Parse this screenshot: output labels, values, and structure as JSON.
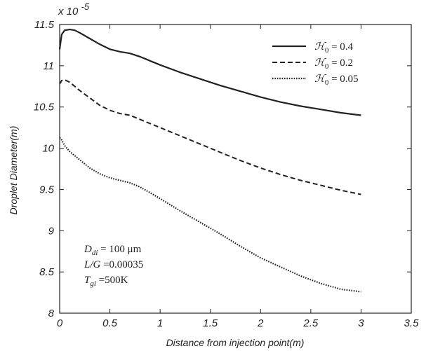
{
  "chart_data": {
    "type": "line",
    "xlabel": "Distance from injection point(m)",
    "ylabel": "Droplet Diameter(m)",
    "y_scale_label": "x 10",
    "y_scale_exponent": "-5",
    "xlim": [
      0,
      3.5
    ],
    "ylim": [
      8,
      11.5
    ],
    "x_ticks": [
      0,
      0.5,
      1,
      1.5,
      2,
      2.5,
      3,
      3.5
    ],
    "x_tick_labels": [
      "0",
      "0.5",
      "1",
      "1.5",
      "2",
      "2.5",
      "3",
      "3.5"
    ],
    "y_ticks": [
      8,
      8.5,
      9,
      9.5,
      10,
      10.5,
      11,
      11.5
    ],
    "y_tick_labels": [
      "8",
      "8.5",
      "9",
      "9.5",
      "10",
      "10.5",
      "11",
      "11.5"
    ],
    "grid": false,
    "legend_position": "top-right",
    "series": [
      {
        "name": "ℋ0 = 0.4",
        "legend_symbol": "ℋ",
        "legend_sub": "0",
        "legend_value": " = 0.4",
        "style": "solid",
        "x": [
          0.0,
          0.02,
          0.05,
          0.1,
          0.15,
          0.2,
          0.3,
          0.4,
          0.5,
          0.6,
          0.7,
          0.8,
          0.9,
          1.0,
          1.2,
          1.4,
          1.6,
          1.8,
          2.0,
          2.2,
          2.4,
          2.6,
          2.8,
          3.0
        ],
        "y": [
          11.2,
          11.38,
          11.43,
          11.44,
          11.43,
          11.4,
          11.33,
          11.26,
          11.2,
          11.17,
          11.15,
          11.11,
          11.06,
          11.01,
          10.92,
          10.84,
          10.76,
          10.69,
          10.62,
          10.56,
          10.51,
          10.47,
          10.43,
          10.4
        ]
      },
      {
        "name": "ℋ0 = 0.2",
        "legend_symbol": "ℋ",
        "legend_sub": "0",
        "legend_value": " = 0.2",
        "style": "dashed",
        "x": [
          0.0,
          0.02,
          0.05,
          0.1,
          0.15,
          0.2,
          0.3,
          0.4,
          0.5,
          0.6,
          0.7,
          0.8,
          0.9,
          1.0,
          1.2,
          1.4,
          1.6,
          1.8,
          2.0,
          2.2,
          2.4,
          2.6,
          2.8,
          3.0
        ],
        "y": [
          10.78,
          10.82,
          10.83,
          10.8,
          10.75,
          10.7,
          10.61,
          10.52,
          10.46,
          10.42,
          10.4,
          10.35,
          10.3,
          10.25,
          10.15,
          10.05,
          9.95,
          9.85,
          9.76,
          9.68,
          9.61,
          9.55,
          9.49,
          9.44
        ]
      },
      {
        "name": "ℋ0 = 0.05",
        "legend_symbol": "ℋ",
        "legend_sub": "0",
        "legend_value": " = 0.05",
        "style": "dotted",
        "x": [
          0.0,
          0.02,
          0.05,
          0.1,
          0.2,
          0.3,
          0.4,
          0.5,
          0.6,
          0.7,
          0.8,
          0.9,
          1.0,
          1.2,
          1.4,
          1.6,
          1.8,
          2.0,
          2.2,
          2.4,
          2.6,
          2.8,
          3.0
        ],
        "y": [
          10.13,
          10.1,
          10.03,
          9.96,
          9.86,
          9.76,
          9.69,
          9.64,
          9.61,
          9.58,
          9.53,
          9.46,
          9.39,
          9.24,
          9.1,
          8.96,
          8.81,
          8.67,
          8.56,
          8.45,
          8.36,
          8.29,
          8.26
        ]
      }
    ],
    "annotations": [
      {
        "main": "D",
        "sub": "di",
        "rest": " = 100 μm"
      },
      {
        "main": "L/G",
        "sub": "",
        "rest": " =0.00035"
      },
      {
        "main": "T",
        "sub": "gi",
        "rest": " =500K"
      }
    ]
  }
}
